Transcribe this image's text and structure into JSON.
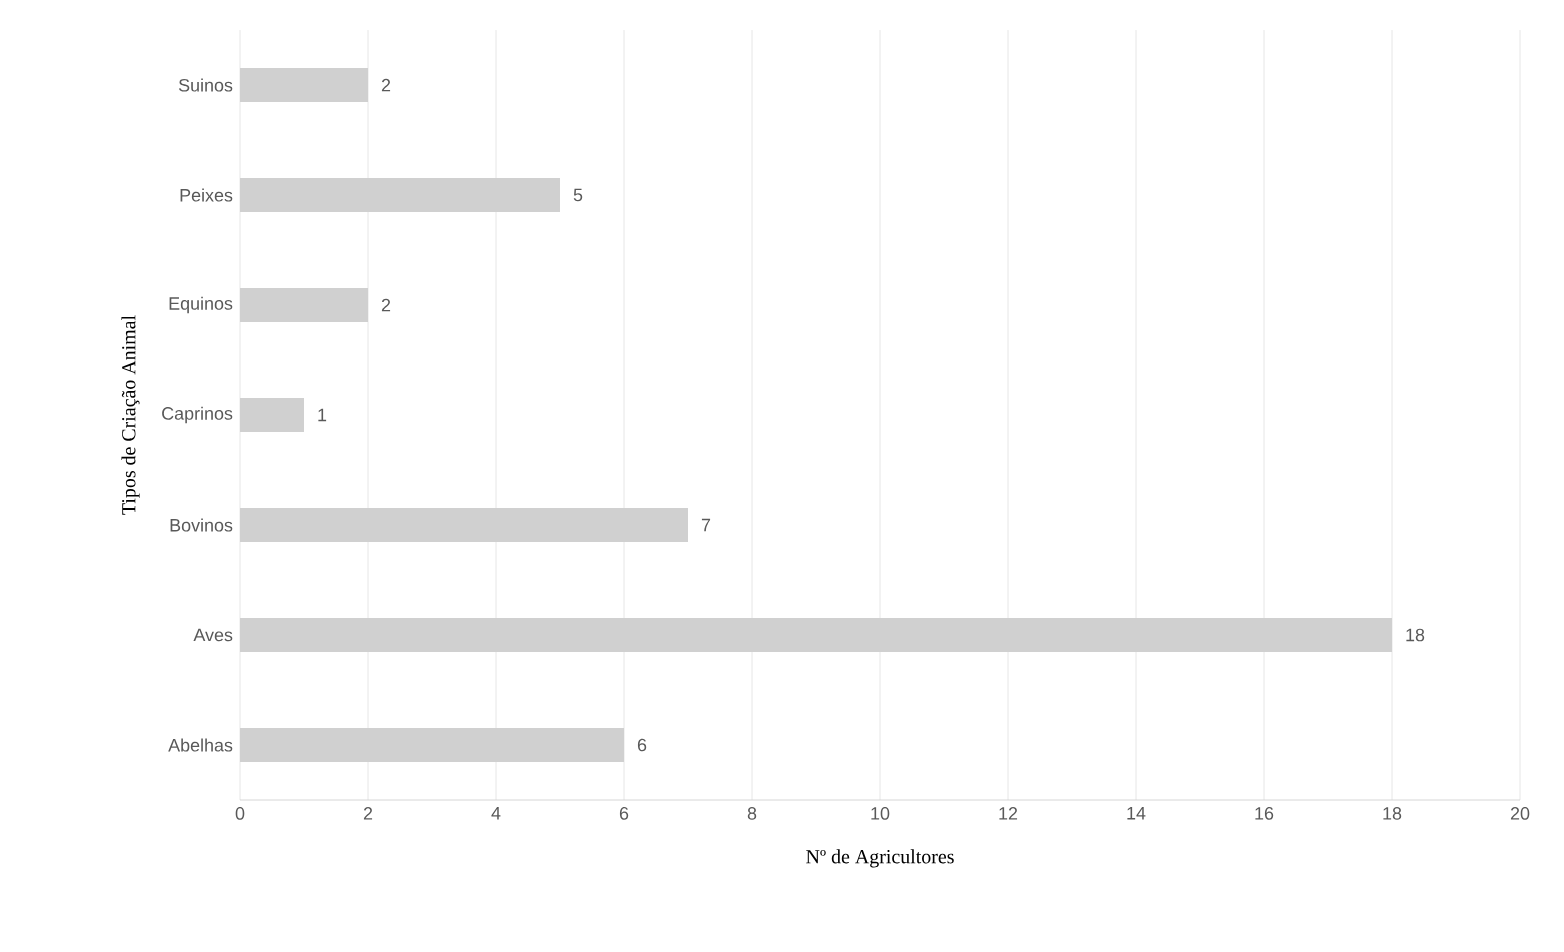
{
  "chart_data": {
    "type": "bar",
    "orientation": "horizontal",
    "xlabel": "Nº de Agricultores",
    "ylabel": "Tipos de Criação Animal",
    "categories": [
      "Suinos",
      "Peixes",
      "Equinos",
      "Caprinos",
      "Bovinos",
      "Aves",
      "Abelhas"
    ],
    "values": [
      2,
      5,
      2,
      1,
      7,
      18,
      6
    ],
    "color": "#d0d0d0",
    "xlim": [
      0,
      20
    ],
    "xticks": [
      0,
      2,
      4,
      6,
      8,
      10,
      12,
      14,
      16,
      18,
      20
    ],
    "grid": "x",
    "data_labels": true
  }
}
